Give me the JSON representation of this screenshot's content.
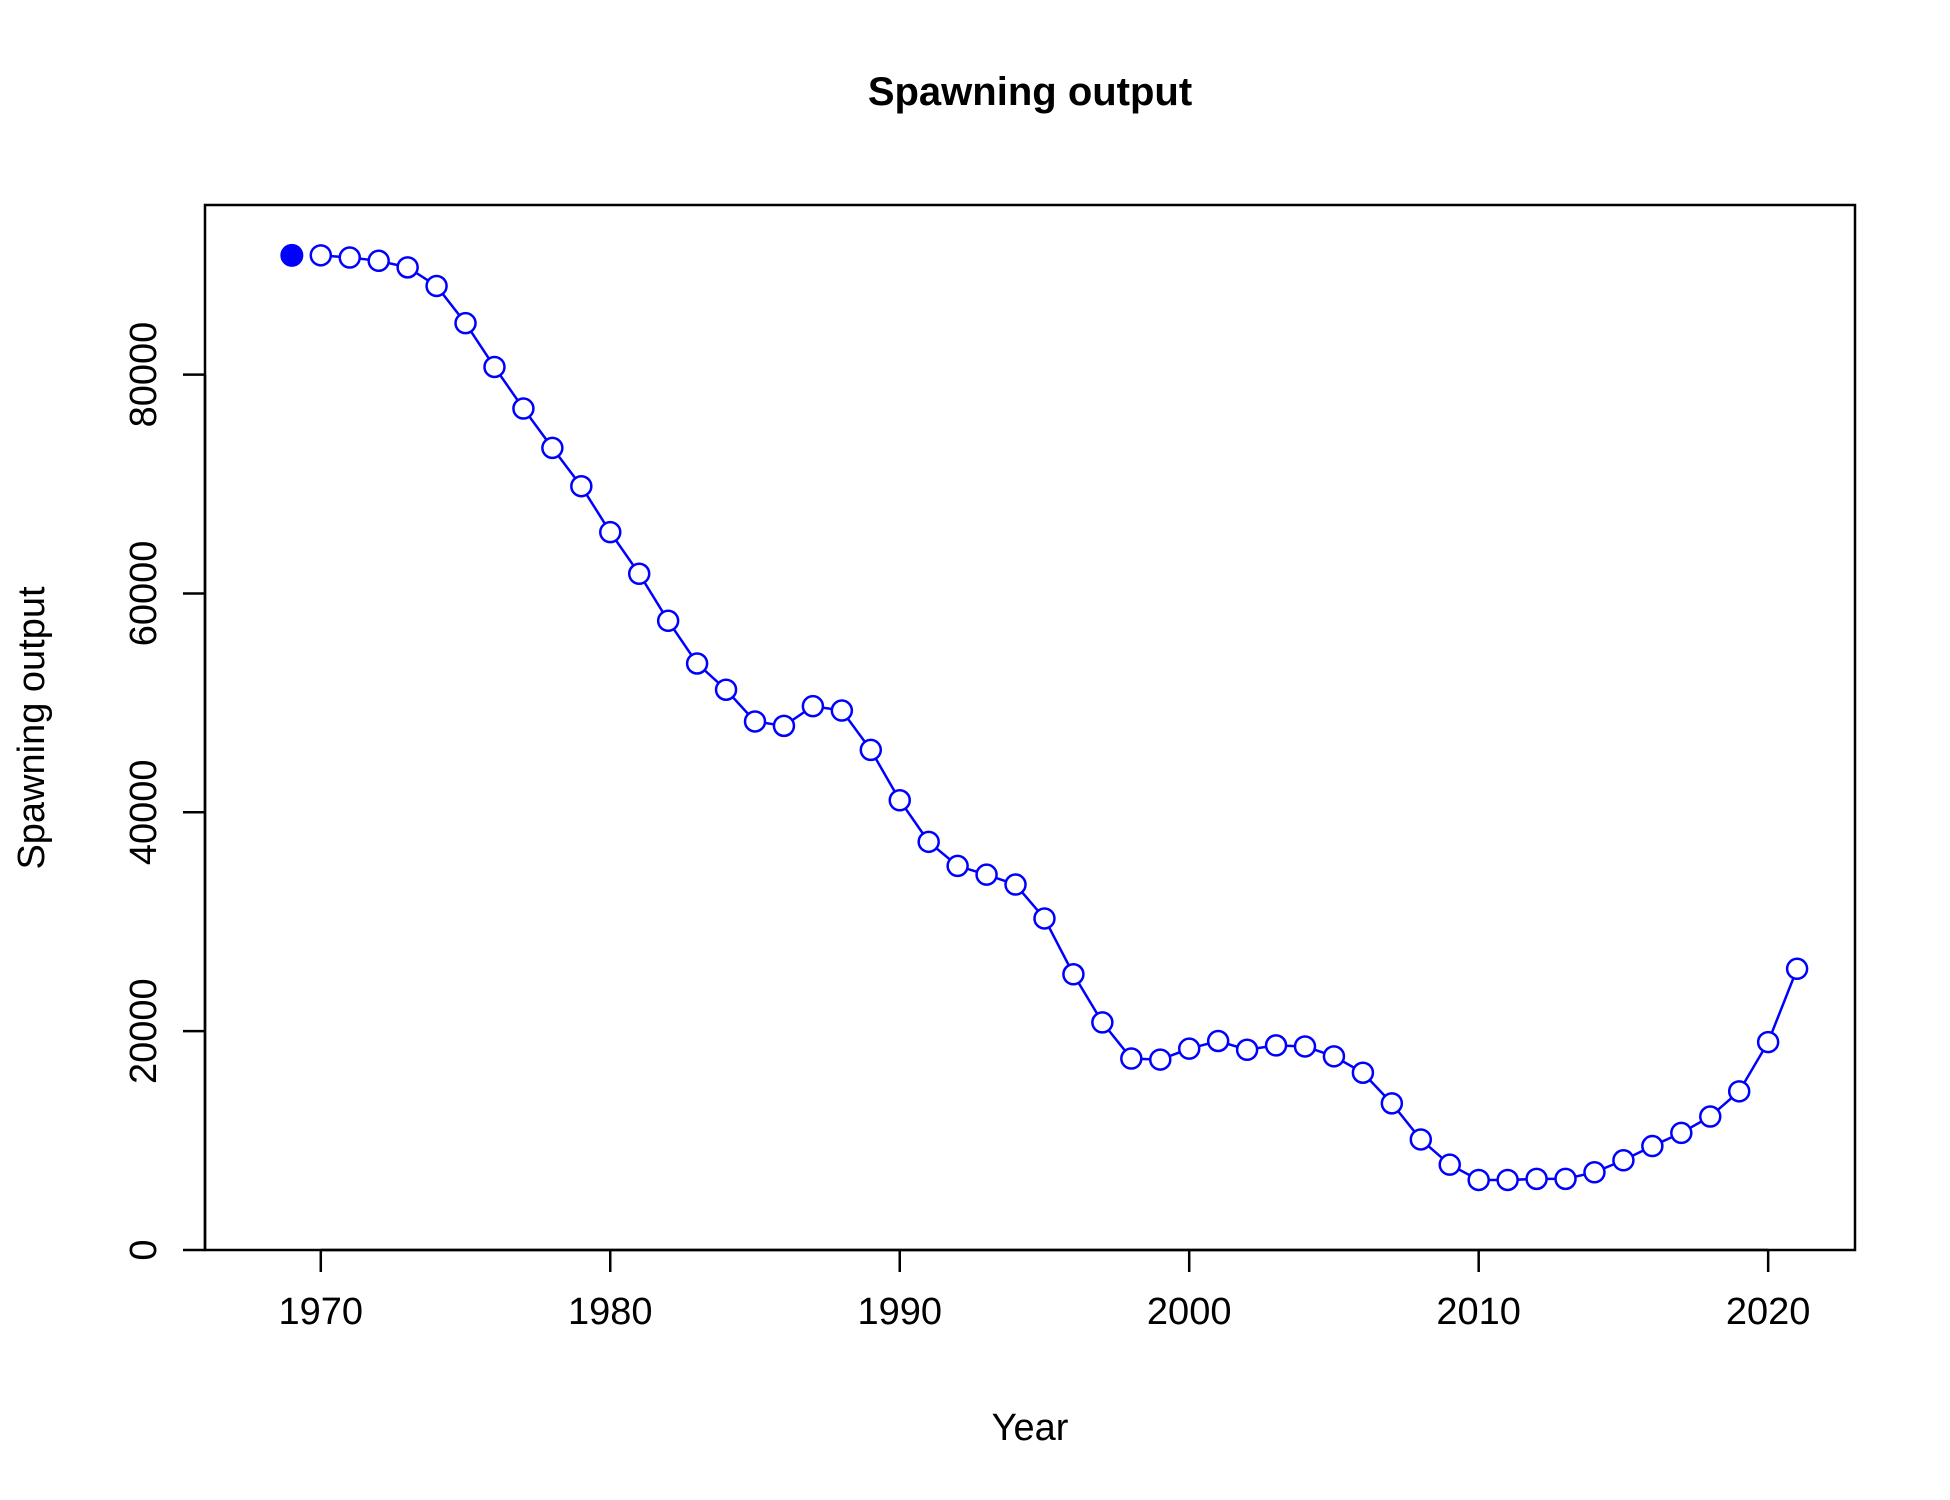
{
  "chart_data": {
    "type": "line",
    "title": "Spawning output",
    "xlabel": "Year",
    "ylabel": "Spawning output",
    "xlim": [
      1966,
      2023
    ],
    "ylim": [
      0,
      95500
    ],
    "x_ticks": [
      1970,
      1980,
      1990,
      2000,
      2010,
      2020
    ],
    "x_tick_labels": [
      "1970",
      "1980",
      "1990",
      "2000",
      "2010",
      "2020"
    ],
    "y_ticks": [
      0,
      20000,
      40000,
      60000,
      80000
    ],
    "y_tick_labels": [
      "0",
      "20000",
      "40000",
      "60000",
      "80000"
    ],
    "grid": false,
    "series_color": "#0000ff",
    "initial_point": {
      "x": 1969,
      "y": 90900,
      "marker": "filled-circle"
    },
    "series": [
      {
        "marker": "open-circle",
        "x": [
          1970,
          1971,
          1972,
          1973,
          1974,
          1975,
          1976,
          1977,
          1978,
          1979,
          1980,
          1981,
          1982,
          1983,
          1984,
          1985,
          1986,
          1987,
          1988,
          1989,
          1990,
          1991,
          1992,
          1993,
          1994,
          1995,
          1996,
          1997,
          1998,
          1999,
          2000,
          2001,
          2002,
          2003,
          2004,
          2005,
          2006,
          2007,
          2008,
          2009,
          2010,
          2011,
          2012,
          2013,
          2014,
          2015,
          2016,
          2017,
          2018,
          2019,
          2020,
          2021
        ],
        "y": [
          90900,
          90700,
          90400,
          89800,
          88100,
          84700,
          80700,
          76900,
          73300,
          69800,
          65600,
          61800,
          57500,
          53600,
          51200,
          48300,
          47900,
          49700,
          49300,
          45700,
          41100,
          37300,
          35100,
          34300,
          33400,
          30300,
          25200,
          20800,
          17500,
          17400,
          18400,
          19100,
          18300,
          18700,
          18600,
          17700,
          16200,
          13400,
          10100,
          7800,
          6400,
          6400,
          6500,
          6500,
          7100,
          8200,
          9500,
          10700,
          12200,
          14500,
          19000,
          25700
        ]
      }
    ]
  }
}
